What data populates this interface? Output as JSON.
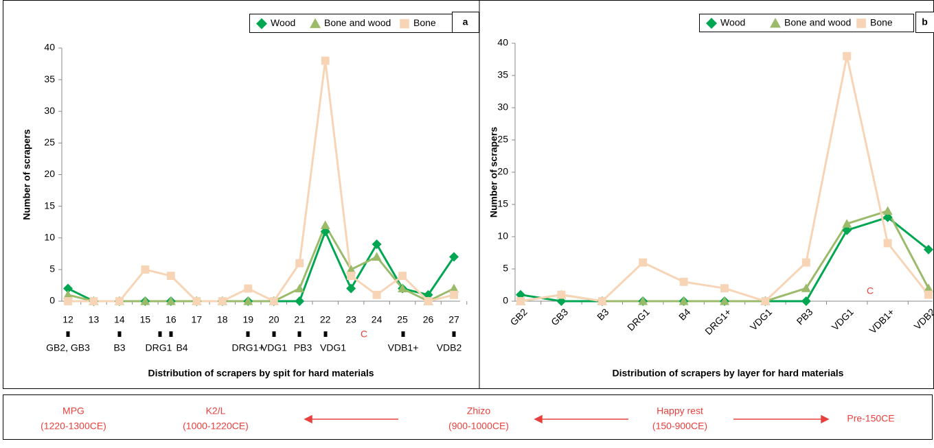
{
  "chart_data": [
    {
      "type": "line",
      "panel": "a",
      "x_label": "Distribution of scrapers by spit for hard materials",
      "y_label": "Number of scrapers",
      "categories": [
        "12",
        "13",
        "14",
        "15",
        "16",
        "17",
        "18",
        "19",
        "20",
        "21",
        "22",
        "23",
        "24",
        "25",
        "26",
        "27"
      ],
      "ylim": [
        0,
        40
      ],
      "yticks": [
        0,
        5,
        10,
        15,
        20,
        25,
        30,
        35,
        40
      ],
      "grid": false,
      "legend": "top-right",
      "series": [
        {
          "name": "Wood",
          "color": "#00a651",
          "marker": "diamond",
          "values": [
            2,
            0,
            0,
            0,
            0,
            0,
            0,
            0,
            0,
            0,
            11,
            2,
            9,
            2,
            1,
            7
          ]
        },
        {
          "name": "Bone and wood",
          "color": "#9bbb6b",
          "marker": "triangle",
          "values": [
            1,
            0,
            0,
            0,
            0,
            0,
            0,
            0,
            0,
            2,
            12,
            5,
            7,
            2,
            0,
            2
          ]
        },
        {
          "name": "Bone",
          "color": "#f7d4b6",
          "marker": "square",
          "values": [
            0,
            0,
            0,
            5,
            4,
            0,
            0,
            2,
            0,
            6,
            38,
            4,
            1,
            4,
            0,
            1
          ]
        }
      ],
      "annotations": [
        "GB2, GB3",
        "B3",
        "DRG1",
        "B4",
        "DRG1+",
        "VDG1",
        "PB3",
        "VDG1",
        "C",
        "VDB1+",
        "VDB2"
      ]
    },
    {
      "type": "line",
      "panel": "b",
      "x_label": "Distribution of scrapers by layer for hard materials",
      "y_label": "Number of scrapers",
      "categories": [
        "GB2",
        "GB3",
        "B3",
        "DRG1",
        "B4",
        "DRG1+",
        "VDG1",
        "PB3",
        "VDG1",
        "VDB1+",
        "VDB2"
      ],
      "ylim": [
        0,
        40
      ],
      "yticks": [
        0,
        5,
        10,
        15,
        20,
        25,
        30,
        35,
        40
      ],
      "grid": false,
      "legend": "top-right",
      "series": [
        {
          "name": "Wood",
          "color": "#00a651",
          "marker": "diamond",
          "values": [
            1,
            0,
            0,
            0,
            0,
            0,
            0,
            0,
            11,
            13,
            8
          ]
        },
        {
          "name": "Bone and wood",
          "color": "#9bbb6b",
          "marker": "triangle",
          "values": [
            0,
            1,
            0,
            0,
            0,
            0,
            0,
            2,
            12,
            14,
            2
          ]
        },
        {
          "name": "Bone",
          "color": "#f7d4b6",
          "marker": "square",
          "values": [
            0,
            1,
            0,
            6,
            3,
            2,
            0,
            6,
            38,
            9,
            1
          ]
        }
      ],
      "annotations": [
        "C"
      ]
    }
  ],
  "timeline": {
    "periods": [
      {
        "name": "MPG",
        "dates": "(1220-1300CE)"
      },
      {
        "name": "K2/L",
        "dates": "(1000-1220CE)"
      },
      {
        "name": "Zhizo",
        "dates": "(900-1000CE)"
      },
      {
        "name": "Happy rest",
        "dates": "(150-900CE)"
      },
      {
        "name": "Pre-150CE"
      }
    ]
  }
}
